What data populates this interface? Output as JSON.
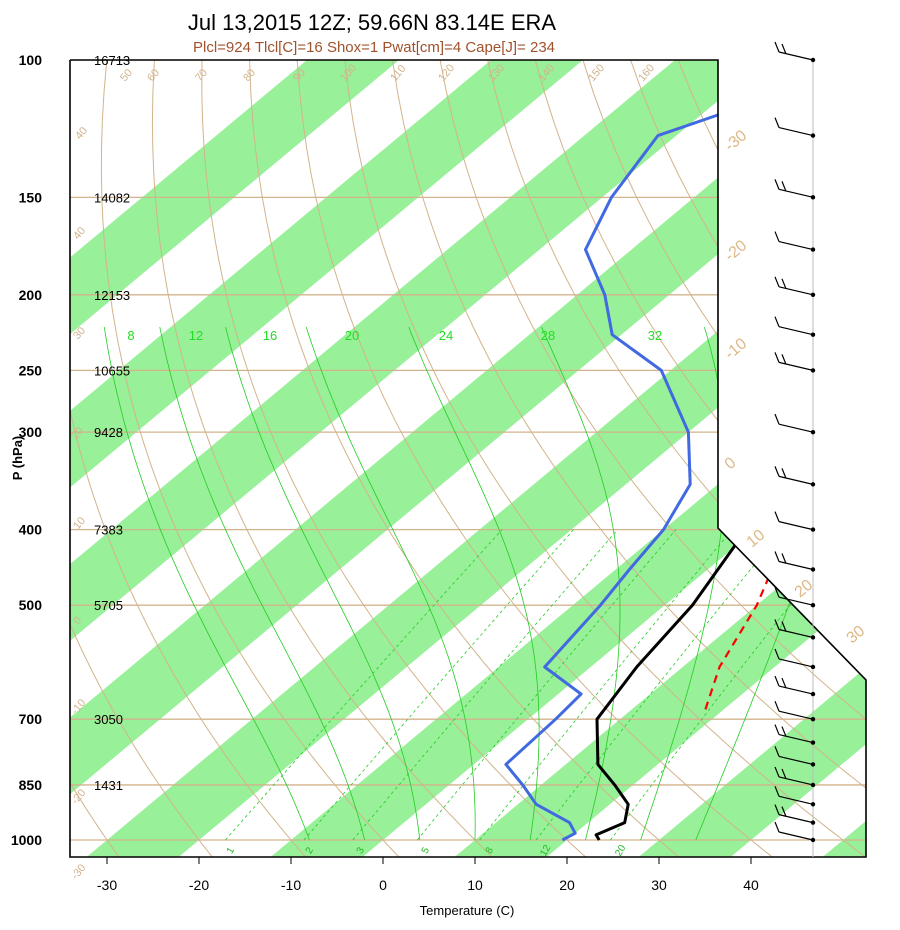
{
  "chart_data": {
    "type": "skew-t",
    "title": "Jul 13,2015 12Z; 59.66N 83.14E ERA",
    "subtitle": "Plcl=924 Tlcl[C]=16 Shox=1 Pwat[cm]=4 Cape[J]= 234",
    "xlabel": "Temperature (C)",
    "ylabel": "P (hPa)",
    "x_ticks": [
      -30,
      -20,
      -10,
      0,
      10,
      20,
      30,
      40
    ],
    "pressure_ticks": [
      100,
      150,
      200,
      250,
      300,
      400,
      500,
      700,
      850,
      1000
    ],
    "heights": [
      {
        "p": 100,
        "label": "16713"
      },
      {
        "p": 150,
        "label": "14082"
      },
      {
        "p": 200,
        "label": "12153"
      },
      {
        "p": 250,
        "label": "10655"
      },
      {
        "p": 300,
        "label": "9428"
      },
      {
        "p": 400,
        "label": "7383"
      },
      {
        "p": 500,
        "label": "5705"
      },
      {
        "p": 700,
        "label": "3050"
      },
      {
        "p": 850,
        "label": "1431"
      }
    ],
    "isotherm_labels": [
      "-30",
      "-20",
      "-10",
      "0",
      "10",
      "20",
      "30"
    ],
    "dry_adiabat_labels": [
      "40",
      "50",
      "60",
      "70",
      "80",
      "90",
      "100",
      "110",
      "120",
      "130",
      "140",
      "150",
      "160",
      "40",
      "30",
      "20",
      "10",
      "0",
      "-10",
      "-20",
      "-30"
    ],
    "moist_adiabat_labels_top": [
      "8",
      "12",
      "16",
      "20",
      "24",
      "28",
      "32"
    ],
    "mixing_ratio_labels_bottom": [
      "1",
      "2",
      "3",
      "5",
      "8",
      "12",
      "20"
    ],
    "series": [
      {
        "name": "temperature",
        "color": "#000000",
        "points": [
          [
            1000,
            23.5
          ],
          [
            985,
            22.5
          ],
          [
            950,
            24
          ],
          [
            900,
            22
          ],
          [
            850,
            18
          ],
          [
            800,
            13.5
          ],
          [
            700,
            7.5
          ],
          [
            600,
            5
          ],
          [
            500,
            3
          ],
          [
            400,
            -1
          ],
          [
            350,
            -3
          ],
          [
            300,
            -10
          ],
          [
            250,
            -10
          ],
          [
            200,
            -10
          ],
          [
            175,
            -13
          ],
          [
            150,
            -17
          ],
          [
            125,
            -21
          ],
          [
            100,
            -17
          ]
        ]
      },
      {
        "name": "dewpoint",
        "color": "#4169e1",
        "points": [
          [
            1000,
            19.5
          ],
          [
            980,
            20
          ],
          [
            950,
            18
          ],
          [
            900,
            12
          ],
          [
            850,
            8
          ],
          [
            800,
            3.5
          ],
          [
            700,
            3
          ],
          [
            650,
            2.5
          ],
          [
            600,
            -5
          ],
          [
            500,
            -7
          ],
          [
            450,
            -8.5
          ],
          [
            400,
            -10
          ],
          [
            350,
            -13
          ],
          [
            300,
            -20
          ],
          [
            250,
            -31
          ],
          [
            225,
            -41
          ],
          [
            200,
            -47
          ],
          [
            175,
            -55
          ],
          [
            150,
            -59
          ],
          [
            125,
            -62
          ],
          [
            100,
            -48
          ]
        ]
      },
      {
        "name": "parcel",
        "color": "#ff0000",
        "points": [
          [
            680,
            18
          ],
          [
            600,
            14
          ],
          [
            500,
            10
          ],
          [
            450,
            7
          ],
          [
            400,
            3
          ],
          [
            350,
            -3
          ],
          [
            300,
            -11
          ]
        ]
      }
    ],
    "wind_barbs": "right side profile, 100-1000 hPa",
    "colors": {
      "shade": "#98f098",
      "isotherm": "#d2b48c",
      "moist": "#22cc22",
      "temperature": "#000000",
      "dewpoint": "#4169e1",
      "parcel": "#ff0000"
    }
  }
}
